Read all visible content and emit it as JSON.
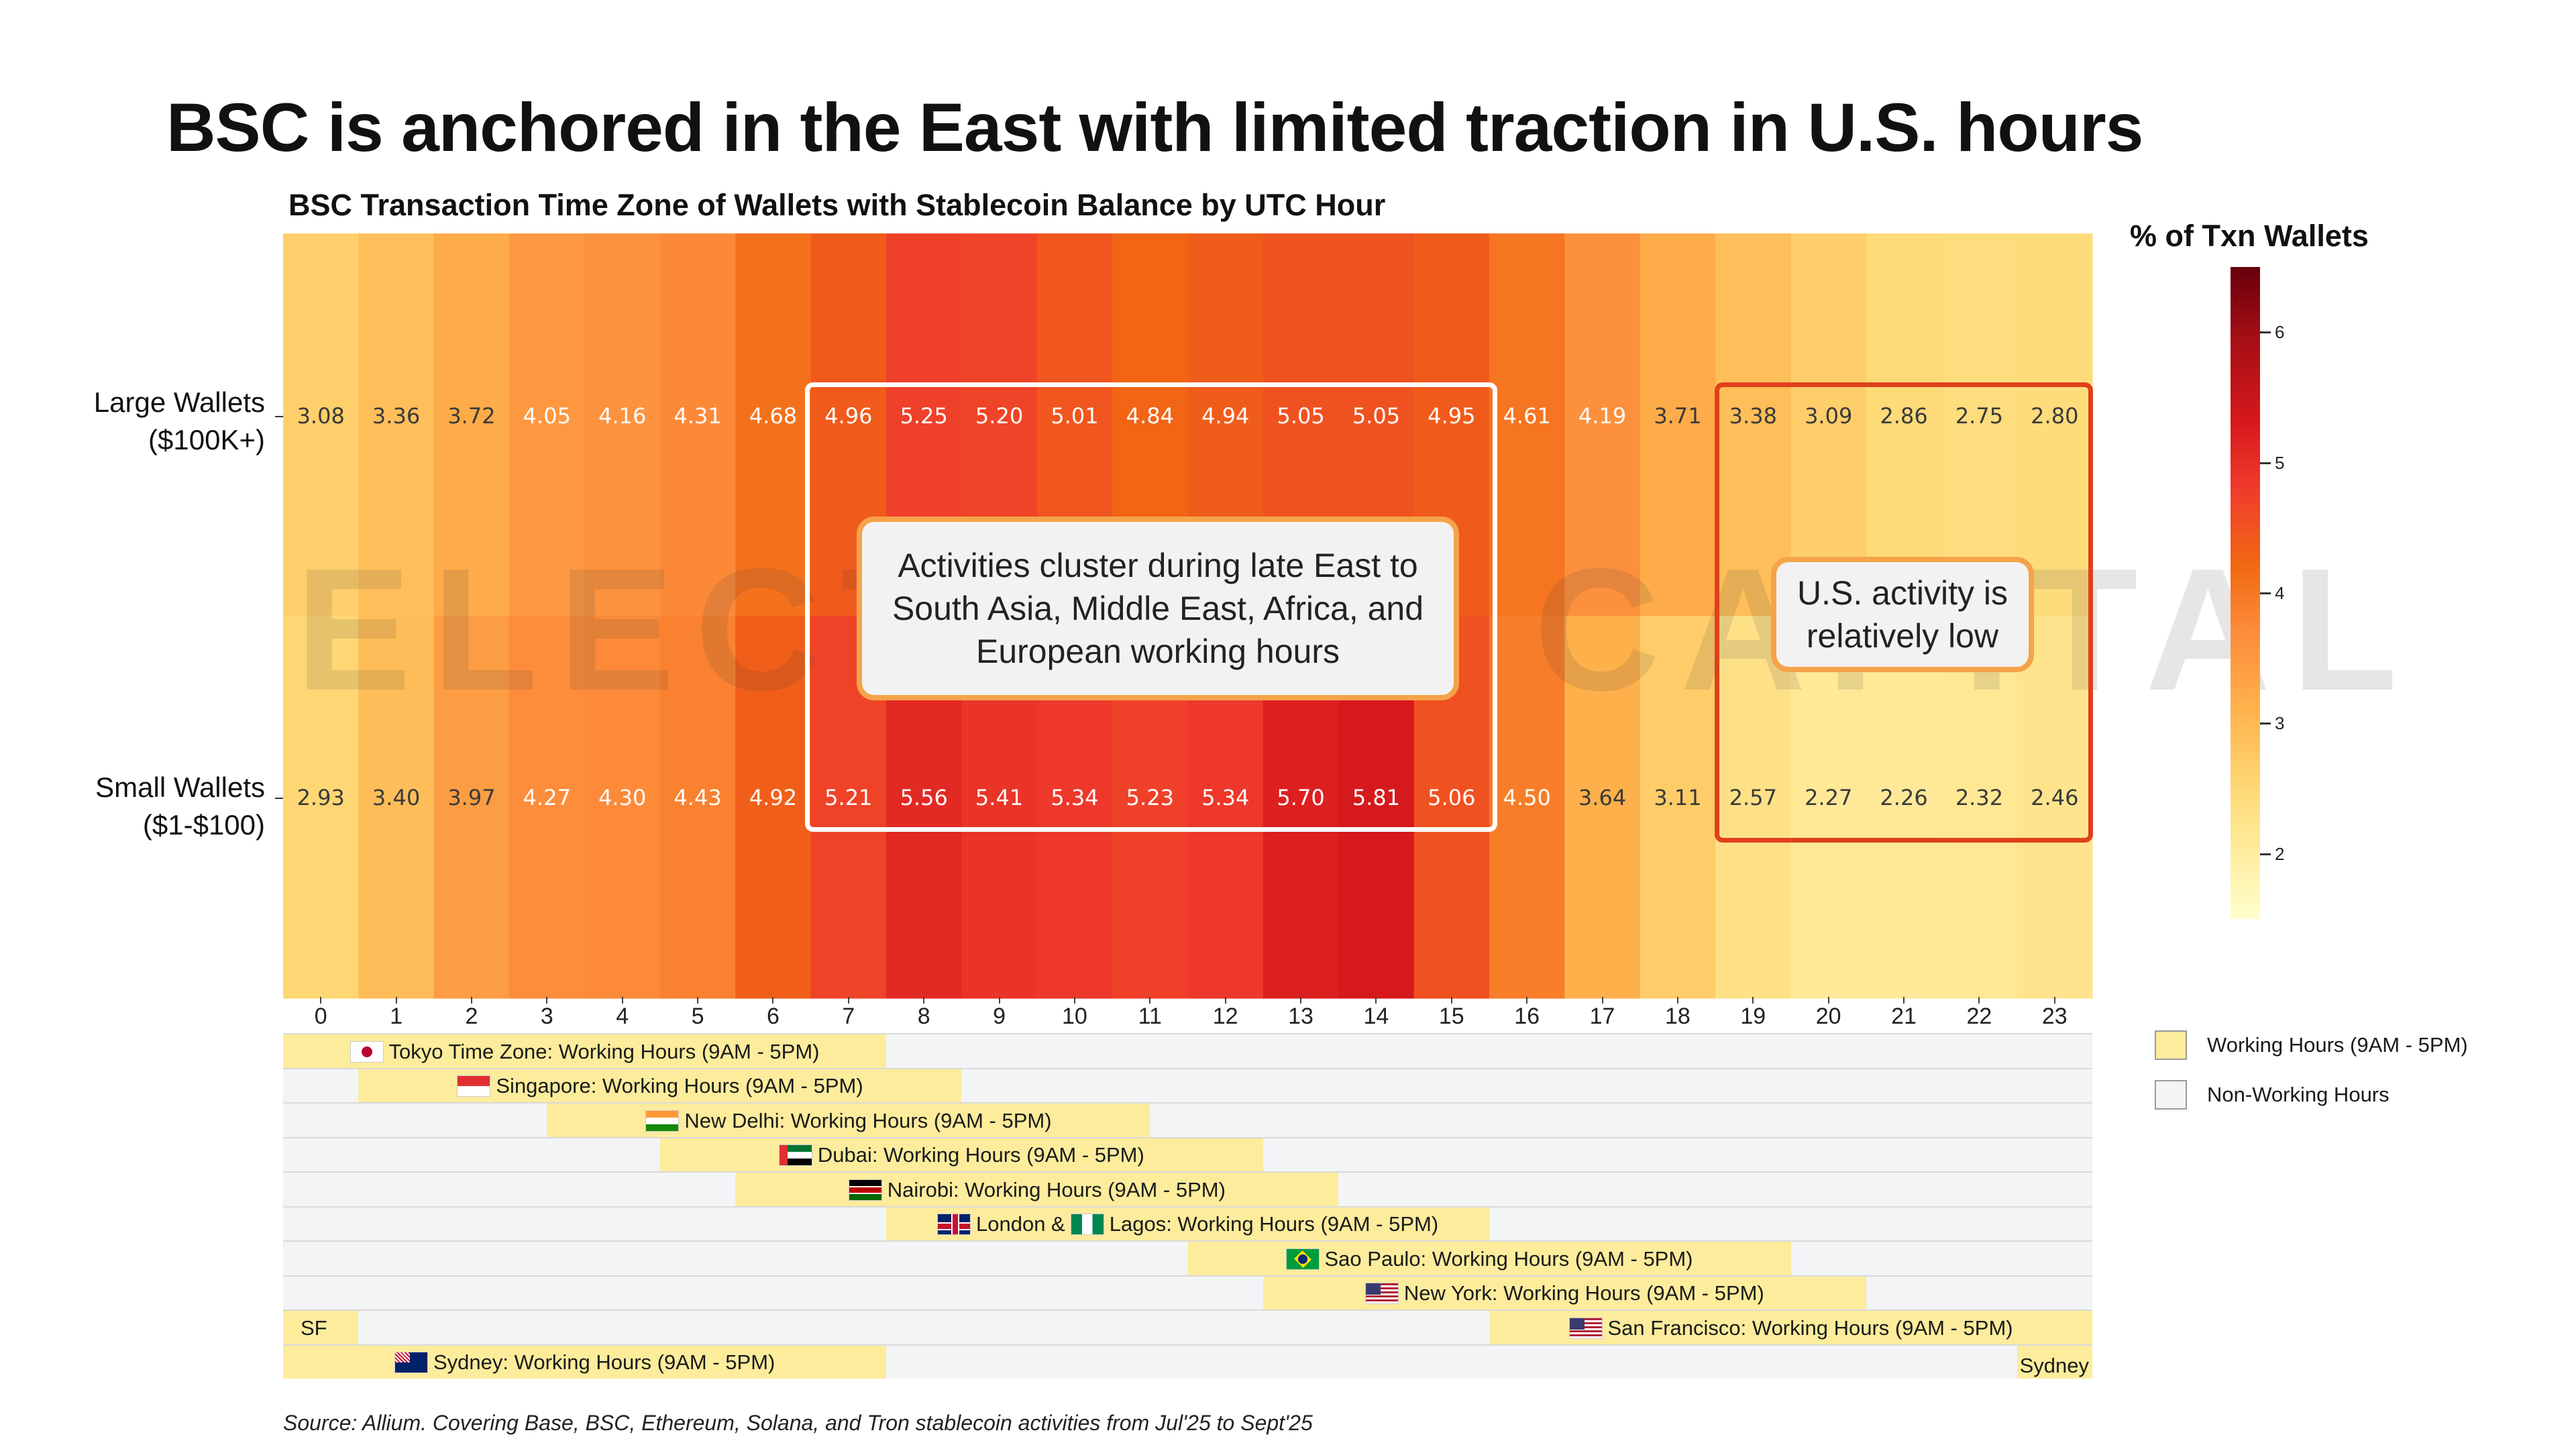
{
  "title": "BSC is anchored in the East with limited traction in U.S. hours",
  "subtitle": "BSC Transaction Time Zone of Wallets with Stablecoin Balance by UTC Hour",
  "watermark": "ELECTRIC / CAPITAL",
  "colorbar": {
    "title": "% of Txn Wallets",
    "ticks": [
      "6",
      "5",
      "4",
      "3",
      "2"
    ]
  },
  "callouts": {
    "east": "Activities cluster during late East to South Asia, Middle East, Africa, and European working hours",
    "us": "U.S. activity is relatively low"
  },
  "row_labels": {
    "large": "Large Wallets ($100K+)",
    "small": "Small Wallets ($1-$100)"
  },
  "chart_data": {
    "type": "heatmap",
    "title": "BSC Transaction Time Zone of Wallets with Stablecoin Balance by UTC Hour",
    "x": [
      0,
      1,
      2,
      3,
      4,
      5,
      6,
      7,
      8,
      9,
      10,
      11,
      12,
      13,
      14,
      15,
      16,
      17,
      18,
      19,
      20,
      21,
      22,
      23
    ],
    "rows": [
      "Large Wallets ($100K+)",
      "Small Wallets ($1-$100)"
    ],
    "values": [
      [
        3.08,
        3.36,
        3.72,
        4.05,
        4.16,
        4.31,
        4.68,
        4.96,
        5.25,
        5.2,
        5.01,
        4.84,
        4.94,
        5.05,
        5.05,
        4.95,
        4.61,
        4.19,
        3.71,
        3.38,
        3.09,
        2.86,
        2.75,
        2.8
      ],
      [
        2.93,
        3.4,
        3.97,
        4.27,
        4.3,
        4.43,
        4.92,
        5.21,
        5.56,
        5.41,
        5.34,
        5.23,
        5.34,
        5.7,
        5.81,
        5.06,
        4.5,
        3.64,
        3.11,
        2.57,
        2.27,
        2.26,
        2.32,
        2.46
      ]
    ],
    "value_labels": [
      [
        "3.08",
        "3.36",
        "3.72",
        "4.05",
        "4.16",
        "4.31",
        "4.68",
        "4.96",
        "5.25",
        "5.20",
        "5.01",
        "4.84",
        "4.94",
        "5.05",
        "5.05",
        "4.95",
        "4.61",
        "4.19",
        "3.71",
        "3.38",
        "3.09",
        "2.86",
        "2.75",
        "2.80"
      ],
      [
        "2.93",
        "3.40",
        "3.97",
        "4.27",
        "4.30",
        "4.43",
        "4.92",
        "5.21",
        "5.56",
        "5.41",
        "5.34",
        "5.23",
        "5.34",
        "5.70",
        "5.81",
        "5.06",
        "4.50",
        "3.64",
        "3.11",
        "2.57",
        "2.27",
        "2.26",
        "2.32",
        "2.46"
      ]
    ],
    "colorscale": "YlOrRd",
    "vrange": [
      1.5,
      6.5
    ],
    "legend": "right"
  },
  "timezones": [
    {
      "label": "Tokyo Time Zone: Working Hours (9AM - 5PM)",
      "flag": "jp",
      "start": 0,
      "end": 8
    },
    {
      "label": "Singapore: Working Hours (9AM - 5PM)",
      "flag": "sg",
      "start": 1,
      "end": 9
    },
    {
      "label": "New Delhi: Working Hours (9AM - 5PM)",
      "flag": "in",
      "start": 3.5,
      "end": 11.5
    },
    {
      "label": "Dubai: Working Hours (9AM - 5PM)",
      "flag": "ae",
      "start": 5,
      "end": 13
    },
    {
      "label": "Nairobi: Working Hours (9AM - 5PM)",
      "flag": "ke",
      "start": 6,
      "end": 14
    },
    {
      "label": "Lagos: Working Hours (9AM - 5PM)",
      "prefix": "London &",
      "flag": "gb",
      "flag2": "ng",
      "start": 8,
      "end": 16
    },
    {
      "label": "Sao Paulo: Working Hours (9AM - 5PM)",
      "flag": "br",
      "start": 12,
      "end": 20
    },
    {
      "label": "New York: Working Hours (9AM - 5PM)",
      "flag": "us",
      "start": 13,
      "end": 21
    },
    {
      "label": "San Francisco: Working Hours (9AM - 5PM)",
      "flag": "us",
      "start": 16,
      "end": 24,
      "wrap_label": "SF",
      "wrap_end": 1
    },
    {
      "label": "Sydney: Working Hours (9AM - 5PM)",
      "flag": "au",
      "start": 0,
      "end": 8,
      "wrap_label": "Sydney",
      "wrap_start": 23
    }
  ],
  "legend": {
    "working": "Working Hours (9AM - 5PM)",
    "nonworking": "Non-Working Hours"
  },
  "footer": "Source: Allium. Covering Base, BSC, Ethereum, Solana, and Tron stablecoin activities from Jul'25 to Sept'25"
}
